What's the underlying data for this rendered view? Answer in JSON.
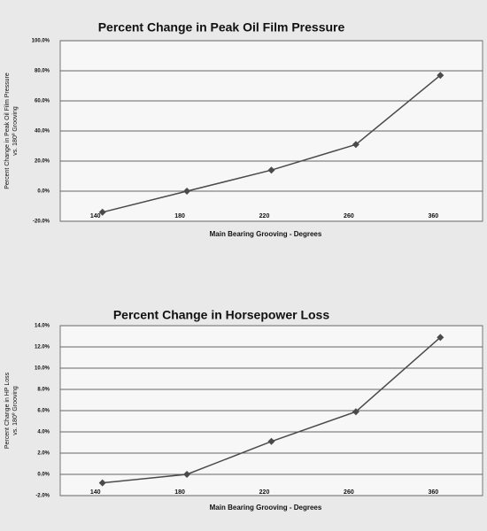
{
  "chart_data": [
    {
      "type": "line",
      "title": "Percent Change in Peak Oil Film Pressure",
      "ylabel": [
        "Percent Change in Peak Oil Film Pressure",
        "vs. 180º Grooving"
      ],
      "xlabel": "Main Bearing Grooving - Degrees",
      "categories": [
        "140",
        "180",
        "220",
        "260",
        "360"
      ],
      "series": [
        {
          "color": "#4a4a4a",
          "values": [
            -14,
            0,
            14,
            31,
            77
          ]
        }
      ],
      "ylim": [
        -20,
        100
      ],
      "yticks": [
        {
          "value": -20,
          "label": "-20.0%"
        },
        {
          "value": 0,
          "label": "0.0%"
        },
        {
          "value": 20,
          "label": "20.0%"
        },
        {
          "value": 40,
          "label": "40.0%"
        },
        {
          "value": 60,
          "label": "60.0%"
        },
        {
          "value": 80,
          "label": "80.0%"
        },
        {
          "value": 100,
          "label": "100.0%"
        }
      ],
      "grid": true
    },
    {
      "type": "line",
      "title": "Percent Change in Horsepower Loss",
      "ylabel": [
        "Percent Change in HP Loss",
        "vs. 180º Grooving"
      ],
      "xlabel": "Main Bearing Grooving - Degrees",
      "categories": [
        "140",
        "180",
        "220",
        "260",
        "360"
      ],
      "series": [
        {
          "color": "#4a4a4a",
          "values": [
            -0.8,
            0,
            3.1,
            5.9,
            12.9
          ]
        }
      ],
      "ylim": [
        -2,
        14
      ],
      "yticks": [
        {
          "value": -2,
          "label": "-2.0%"
        },
        {
          "value": 0,
          "label": "0.0%"
        },
        {
          "value": 2,
          "label": "2.0%"
        },
        {
          "value": 4,
          "label": "4.0%"
        },
        {
          "value": 6,
          "label": "6.0%"
        },
        {
          "value": 8,
          "label": "8.0%"
        },
        {
          "value": 10,
          "label": "10.0%"
        },
        {
          "value": 12,
          "label": "12.0%"
        },
        {
          "value": 14,
          "label": "14.0%"
        }
      ],
      "grid": true
    }
  ]
}
